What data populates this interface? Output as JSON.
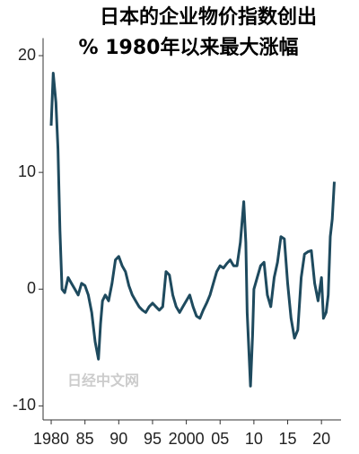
{
  "chart_data": {
    "type": "line",
    "title": "日本的企业物价指数创出",
    "subtitle": "% 1980年以来最大涨幅",
    "watermark": "日经中文网",
    "xlim": [
      1978.8,
      2022.9
    ],
    "xticks": [
      {
        "value": 1980,
        "label": "1980"
      },
      {
        "value": 1985,
        "label": "85"
      },
      {
        "value": 1990,
        "label": "90"
      },
      {
        "value": 1995,
        "label": "95"
      },
      {
        "value": 2000,
        "label": "2000"
      },
      {
        "value": 2005,
        "label": "05"
      },
      {
        "value": 2010,
        "label": "10"
      },
      {
        "value": 2015,
        "label": "15"
      },
      {
        "value": 2020,
        "label": "20"
      }
    ],
    "ylim": [
      -11.2,
      21.5
    ],
    "yticks": [
      -10,
      0,
      10,
      20
    ],
    "series": [
      {
        "color": "#1e4a5e",
        "x": [
          1980.0,
          1980.3,
          1980.7,
          1981.0,
          1981.3,
          1981.6,
          1982.0,
          1982.5,
          1983.0,
          1983.5,
          1984.0,
          1984.5,
          1985.0,
          1985.5,
          1986.0,
          1986.5,
          1987.0,
          1987.3,
          1987.6,
          1988.0,
          1988.5,
          1989.0,
          1989.5,
          1990.0,
          1990.5,
          1991.0,
          1991.5,
          1992.0,
          1992.5,
          1993.0,
          1993.5,
          1994.0,
          1994.5,
          1995.0,
          1995.5,
          1996.0,
          1996.5,
          1997.0,
          1997.5,
          1998.0,
          1998.5,
          1999.0,
          1999.5,
          2000.0,
          2000.5,
          2001.0,
          2001.5,
          2002.0,
          2002.5,
          2003.0,
          2003.5,
          2004.0,
          2004.5,
          2005.0,
          2005.5,
          2006.0,
          2006.5,
          2007.0,
          2007.5,
          2008.0,
          2008.5,
          2008.8,
          2009.0,
          2009.5,
          2009.8,
          2010.0,
          2010.5,
          2011.0,
          2011.5,
          2012.0,
          2012.5,
          2013.0,
          2013.5,
          2014.0,
          2014.5,
          2015.0,
          2015.5,
          2016.0,
          2016.5,
          2017.0,
          2017.5,
          2018.0,
          2018.5,
          2019.0,
          2019.5,
          2020.0,
          2020.3,
          2020.7,
          2021.0,
          2021.3,
          2021.6,
          2021.9
        ],
        "values": [
          14,
          18.5,
          16,
          12,
          5,
          0,
          -0.3,
          1,
          0.5,
          0,
          -0.5,
          0.5,
          0.3,
          -0.5,
          -2,
          -4.5,
          -6,
          -3,
          -1,
          -0.5,
          -1,
          0.5,
          2.5,
          2.8,
          2,
          1.5,
          0.3,
          -0.5,
          -1,
          -1.5,
          -1.8,
          -2,
          -1.5,
          -1.2,
          -1.5,
          -1.8,
          -1.5,
          1.5,
          1.2,
          -0.5,
          -1.5,
          -2,
          -1.5,
          -1,
          -0.5,
          -1.5,
          -2.3,
          -2.5,
          -1.8,
          -1.2,
          -0.5,
          0.5,
          1.5,
          2,
          1.8,
          2.2,
          2.5,
          2,
          2,
          4,
          7.5,
          4,
          -2,
          -8.3,
          -4,
          0,
          1,
          2,
          2.3,
          -0.5,
          -1.5,
          1,
          2.3,
          4.5,
          4.3,
          0.5,
          -2.5,
          -4.2,
          -3.5,
          1,
          3,
          3.2,
          3.3,
          0.5,
          -1,
          1,
          -2.5,
          -2,
          -0.5,
          4.5,
          6,
          9.2
        ]
      }
    ]
  }
}
